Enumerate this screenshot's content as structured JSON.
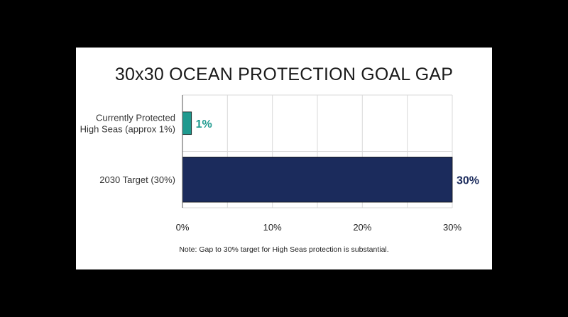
{
  "chart_data": {
    "type": "bar",
    "orientation": "horizontal",
    "title": "30x30 OCEAN PROTECTION GOAL GAP",
    "categories": [
      [
        "Currently Protected",
        "High Seas (approx 1%)"
      ],
      [
        "2030 Target (30%)"
      ]
    ],
    "values": [
      1,
      30
    ],
    "value_labels": [
      "1%",
      "30%"
    ],
    "bar_colors": [
      "#1f9a8f",
      "#1b2b5c"
    ],
    "xlim": [
      0,
      30
    ],
    "xticks": [
      0,
      5,
      10,
      15,
      20,
      25,
      30
    ],
    "xtick_labels": [
      "0%",
      "",
      "10%",
      "",
      "20%",
      "",
      "30%"
    ],
    "grid": true,
    "xlabel": "",
    "ylabel": "",
    "note": "Note: Gap to 30% target for High Seas protection is substantial."
  }
}
